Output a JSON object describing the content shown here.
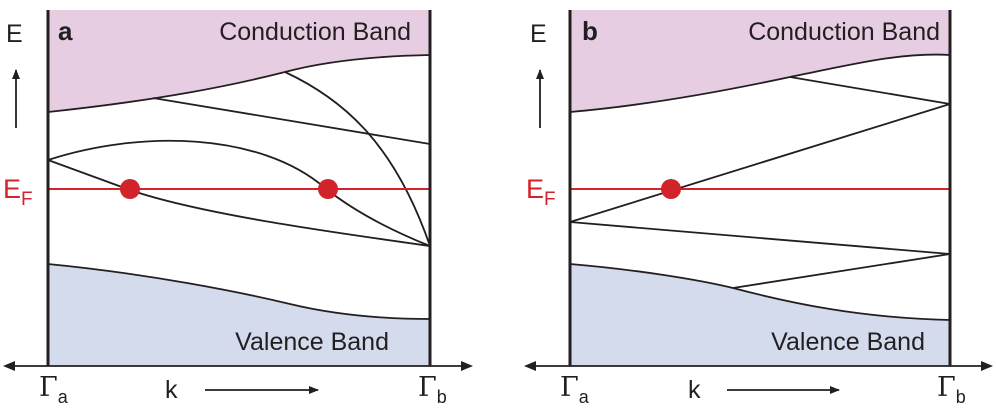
{
  "colors": {
    "conduction_band_fill": "#e6cde2",
    "valence_band_fill": "#d3dbed",
    "fermi_level": "#d2232a",
    "line": "#231f20"
  },
  "panels": [
    {
      "letter": "a",
      "conduction_label": "Conduction Band",
      "valence_label": "Valence Band",
      "energy_axis_label": "E",
      "fermi_label_main": "E",
      "fermi_label_sub": "F",
      "k_label": "k",
      "gamma_left_main": "Γ",
      "gamma_left_sub": "a",
      "gamma_right_main": "Γ",
      "gamma_right_sub": "b",
      "fermi_crossings": 2
    },
    {
      "letter": "b",
      "conduction_label": "Conduction Band",
      "valence_label": "Valence Band",
      "energy_axis_label": "E",
      "fermi_label_main": "E",
      "fermi_label_sub": "F",
      "k_label": "k",
      "gamma_left_main": "Γ",
      "gamma_left_sub": "a",
      "gamma_right_main": "Γ",
      "gamma_right_sub": "b",
      "fermi_crossings": 1
    }
  ]
}
